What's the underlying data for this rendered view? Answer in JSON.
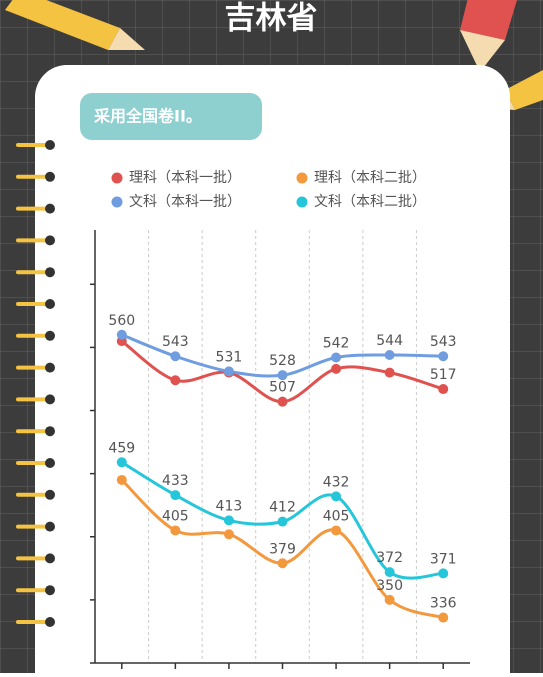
{
  "chart_data": {
    "type": "line",
    "title": "吉林省",
    "note": "采用全国卷II。",
    "categories": [
      null,
      null,
      null,
      null,
      null,
      null,
      null
    ],
    "ylim": [
      300,
      643
    ],
    "yticks": [
      300,
      350,
      400,
      450,
      500,
      550,
      600
    ],
    "series": [
      {
        "name": "理科（本科一批）",
        "color": "#e0524f",
        "values": [
          555,
          524,
          530,
          507,
          533,
          530,
          517
        ],
        "value_labels": [
          null,
          null,
          null,
          "507",
          null,
          null,
          "517"
        ]
      },
      {
        "name": "理科（本科二批）",
        "color": "#f4983e",
        "values": [
          445,
          405,
          402,
          379,
          405,
          350,
          336
        ],
        "value_labels": [
          null,
          "405",
          null,
          "379",
          "405",
          "350",
          "336"
        ]
      },
      {
        "name": "文科（本科一批）",
        "color": "#6f9de0",
        "values": [
          560,
          543,
          531,
          528,
          542,
          544,
          543
        ],
        "value_labels": [
          "560",
          "543",
          "531",
          "528",
          "542",
          "544",
          "543"
        ]
      },
      {
        "name": "文科（本科二批）",
        "color": "#26c6da",
        "values": [
          459,
          433,
          413,
          412,
          432,
          372,
          371
        ],
        "value_labels": [
          "459",
          "433",
          "413",
          "412",
          "432",
          "372",
          "371"
        ]
      }
    ]
  }
}
